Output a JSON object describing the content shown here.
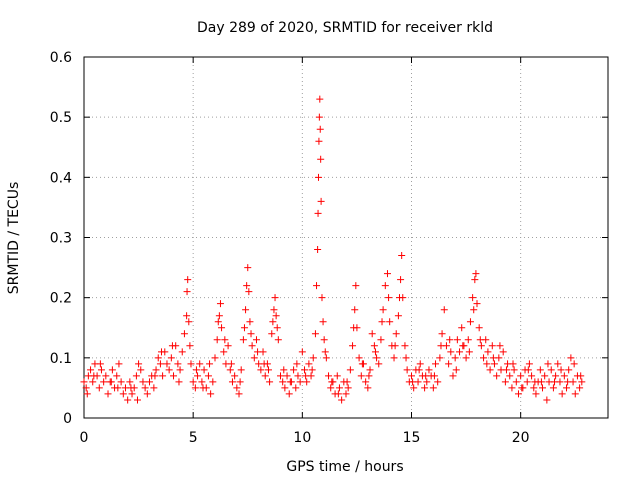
{
  "chart_data": {
    "type": "scatter",
    "title": "Day 289 of 2020, SRMTID for receiver rkld",
    "xlabel": "GPS time / hours",
    "ylabel": "SRMTID / TECUs",
    "xlim": [
      0,
      24
    ],
    "ylim": [
      0,
      0.6
    ],
    "xticks": [
      0,
      5,
      10,
      15,
      20
    ],
    "yticks": [
      0,
      0.1,
      0.2,
      0.3,
      0.4,
      0.5,
      0.6
    ],
    "xtick_labels": [
      "0",
      "5",
      "10",
      "15",
      "20"
    ],
    "ytick_labels": [
      "0",
      "0.1",
      "0.2",
      "0.3",
      "0.4",
      "0.5",
      "0.6"
    ],
    "grid": true,
    "marker": "+",
    "color": "#ff0000",
    "series": [
      {
        "name": "SRMTID",
        "points": [
          [
            0.0,
            0.06
          ],
          [
            0.1,
            0.05
          ],
          [
            0.2,
            0.07
          ],
          [
            0.3,
            0.08
          ],
          [
            0.4,
            0.06
          ],
          [
            0.5,
            0.09
          ],
          [
            0.6,
            0.07
          ],
          [
            0.7,
            0.05
          ],
          [
            0.8,
            0.08
          ],
          [
            0.9,
            0.06
          ],
          [
            1.0,
            0.07
          ],
          [
            1.1,
            0.04
          ],
          [
            1.2,
            0.06
          ],
          [
            1.3,
            0.08
          ],
          [
            1.4,
            0.05
          ],
          [
            1.5,
            0.07
          ],
          [
            1.6,
            0.09
          ],
          [
            1.7,
            0.06
          ],
          [
            1.8,
            0.04
          ],
          [
            1.9,
            0.05
          ],
          [
            2.0,
            0.03
          ],
          [
            2.1,
            0.06
          ],
          [
            2.2,
            0.04
          ],
          [
            2.3,
            0.05
          ],
          [
            2.4,
            0.07
          ],
          [
            2.5,
            0.09
          ],
          [
            2.6,
            0.08
          ],
          [
            2.7,
            0.06
          ],
          [
            2.8,
            0.05
          ],
          [
            2.9,
            0.04
          ],
          [
            3.0,
            0.06
          ],
          [
            3.1,
            0.07
          ],
          [
            3.2,
            0.05
          ],
          [
            3.3,
            0.08
          ],
          [
            3.4,
            0.1
          ],
          [
            3.5,
            0.09
          ],
          [
            3.6,
            0.07
          ],
          [
            3.7,
            0.11
          ],
          [
            3.8,
            0.09
          ],
          [
            3.9,
            0.08
          ],
          [
            4.0,
            0.1
          ],
          [
            4.1,
            0.07
          ],
          [
            4.2,
            0.12
          ],
          [
            4.3,
            0.09
          ],
          [
            4.4,
            0.08
          ],
          [
            4.5,
            0.11
          ],
          [
            4.6,
            0.14
          ],
          [
            4.7,
            0.17
          ],
          [
            4.72,
            0.21
          ],
          [
            4.75,
            0.23
          ],
          [
            4.8,
            0.16
          ],
          [
            4.85,
            0.12
          ],
          [
            4.9,
            0.09
          ],
          [
            5.0,
            0.06
          ],
          [
            5.1,
            0.05
          ],
          [
            5.2,
            0.07
          ],
          [
            5.3,
            0.09
          ],
          [
            5.4,
            0.06
          ],
          [
            5.5,
            0.08
          ],
          [
            5.6,
            0.05
          ],
          [
            5.7,
            0.07
          ],
          [
            5.8,
            0.04
          ],
          [
            5.9,
            0.06
          ],
          [
            6.0,
            0.1
          ],
          [
            6.1,
            0.13
          ],
          [
            6.2,
            0.17
          ],
          [
            6.25,
            0.19
          ],
          [
            6.3,
            0.15
          ],
          [
            6.4,
            0.11
          ],
          [
            6.5,
            0.09
          ],
          [
            6.6,
            0.12
          ],
          [
            6.7,
            0.08
          ],
          [
            6.8,
            0.06
          ],
          [
            6.9,
            0.07
          ],
          [
            7.0,
            0.05
          ],
          [
            7.1,
            0.04
          ],
          [
            7.2,
            0.08
          ],
          [
            7.3,
            0.13
          ],
          [
            7.4,
            0.18
          ],
          [
            7.45,
            0.22
          ],
          [
            7.5,
            0.25
          ],
          [
            7.55,
            0.21
          ],
          [
            7.6,
            0.16
          ],
          [
            7.7,
            0.12
          ],
          [
            7.8,
            0.1
          ],
          [
            7.9,
            0.13
          ],
          [
            8.0,
            0.09
          ],
          [
            8.1,
            0.08
          ],
          [
            8.2,
            0.11
          ],
          [
            8.3,
            0.07
          ],
          [
            8.4,
            0.09
          ],
          [
            8.5,
            0.06
          ],
          [
            8.6,
            0.14
          ],
          [
            8.7,
            0.18
          ],
          [
            8.75,
            0.2
          ],
          [
            8.8,
            0.17
          ],
          [
            8.9,
            0.13
          ],
          [
            9.0,
            0.07
          ],
          [
            9.1,
            0.06
          ],
          [
            9.2,
            0.05
          ],
          [
            9.3,
            0.07
          ],
          [
            9.4,
            0.04
          ],
          [
            9.5,
            0.06
          ],
          [
            9.6,
            0.08
          ],
          [
            9.7,
            0.05
          ],
          [
            9.8,
            0.07
          ],
          [
            9.9,
            0.06
          ],
          [
            10.0,
            0.11
          ],
          [
            10.1,
            0.08
          ],
          [
            10.2,
            0.06
          ],
          [
            10.3,
            0.09
          ],
          [
            10.4,
            0.07
          ],
          [
            10.5,
            0.1
          ],
          [
            10.6,
            0.14
          ],
          [
            10.65,
            0.22
          ],
          [
            10.7,
            0.28
          ],
          [
            10.72,
            0.34
          ],
          [
            10.74,
            0.4
          ],
          [
            10.76,
            0.46
          ],
          [
            10.78,
            0.5
          ],
          [
            10.8,
            0.53
          ],
          [
            10.82,
            0.48
          ],
          [
            10.84,
            0.43
          ],
          [
            10.86,
            0.36
          ],
          [
            10.9,
            0.2
          ],
          [
            10.95,
            0.16
          ],
          [
            11.0,
            0.13
          ],
          [
            11.1,
            0.1
          ],
          [
            11.2,
            0.07
          ],
          [
            11.3,
            0.05
          ],
          [
            11.4,
            0.06
          ],
          [
            11.5,
            0.04
          ],
          [
            11.6,
            0.07
          ],
          [
            11.7,
            0.05
          ],
          [
            11.8,
            0.03
          ],
          [
            11.9,
            0.06
          ],
          [
            12.0,
            0.04
          ],
          [
            12.1,
            0.05
          ],
          [
            12.2,
            0.08
          ],
          [
            12.3,
            0.12
          ],
          [
            12.4,
            0.18
          ],
          [
            12.45,
            0.22
          ],
          [
            12.5,
            0.15
          ],
          [
            12.6,
            0.1
          ],
          [
            12.7,
            0.07
          ],
          [
            12.8,
            0.09
          ],
          [
            12.9,
            0.06
          ],
          [
            13.0,
            0.05
          ],
          [
            13.1,
            0.08
          ],
          [
            13.2,
            0.14
          ],
          [
            13.3,
            0.12
          ],
          [
            13.4,
            0.1
          ],
          [
            13.5,
            0.09
          ],
          [
            13.6,
            0.13
          ],
          [
            13.7,
            0.18
          ],
          [
            13.8,
            0.22
          ],
          [
            13.9,
            0.24
          ],
          [
            14.0,
            0.16
          ],
          [
            14.1,
            0.12
          ],
          [
            14.2,
            0.1
          ],
          [
            14.3,
            0.14
          ],
          [
            14.4,
            0.17
          ],
          [
            14.5,
            0.23
          ],
          [
            14.55,
            0.27
          ],
          [
            14.6,
            0.2
          ],
          [
            14.7,
            0.12
          ],
          [
            14.8,
            0.08
          ],
          [
            14.9,
            0.06
          ],
          [
            15.0,
            0.07
          ],
          [
            15.1,
            0.05
          ],
          [
            15.2,
            0.08
          ],
          [
            15.3,
            0.06
          ],
          [
            15.4,
            0.09
          ],
          [
            15.5,
            0.07
          ],
          [
            15.6,
            0.05
          ],
          [
            15.7,
            0.06
          ],
          [
            15.8,
            0.08
          ],
          [
            15.9,
            0.07
          ],
          [
            16.0,
            0.05
          ],
          [
            16.1,
            0.09
          ],
          [
            16.2,
            0.06
          ],
          [
            16.3,
            0.1
          ],
          [
            16.4,
            0.14
          ],
          [
            16.5,
            0.18
          ],
          [
            16.6,
            0.12
          ],
          [
            16.7,
            0.09
          ],
          [
            16.8,
            0.11
          ],
          [
            16.9,
            0.07
          ],
          [
            17.0,
            0.1
          ],
          [
            17.1,
            0.13
          ],
          [
            17.2,
            0.11
          ],
          [
            17.3,
            0.15
          ],
          [
            17.4,
            0.12
          ],
          [
            17.5,
            0.1
          ],
          [
            17.6,
            0.13
          ],
          [
            17.7,
            0.16
          ],
          [
            17.8,
            0.2
          ],
          [
            17.9,
            0.23
          ],
          [
            17.95,
            0.24
          ],
          [
            18.0,
            0.19
          ],
          [
            18.1,
            0.15
          ],
          [
            18.2,
            0.12
          ],
          [
            18.3,
            0.1
          ],
          [
            18.4,
            0.13
          ],
          [
            18.5,
            0.11
          ],
          [
            18.6,
            0.08
          ],
          [
            18.7,
            0.12
          ],
          [
            18.8,
            0.09
          ],
          [
            18.9,
            0.07
          ],
          [
            19.0,
            0.1
          ],
          [
            19.1,
            0.08
          ],
          [
            19.2,
            0.11
          ],
          [
            19.3,
            0.06
          ],
          [
            19.4,
            0.09
          ],
          [
            19.5,
            0.07
          ],
          [
            19.6,
            0.05
          ],
          [
            19.7,
            0.08
          ],
          [
            19.8,
            0.06
          ],
          [
            19.9,
            0.04
          ],
          [
            20.0,
            0.07
          ],
          [
            20.1,
            0.05
          ],
          [
            20.2,
            0.08
          ],
          [
            20.3,
            0.06
          ],
          [
            20.4,
            0.09
          ],
          [
            20.5,
            0.07
          ],
          [
            20.6,
            0.05
          ],
          [
            20.7,
            0.04
          ],
          [
            20.8,
            0.06
          ],
          [
            20.9,
            0.08
          ],
          [
            21.0,
            0.05
          ],
          [
            21.1,
            0.07
          ],
          [
            21.2,
            0.03
          ],
          [
            21.3,
            0.06
          ],
          [
            21.4,
            0.08
          ],
          [
            21.5,
            0.05
          ],
          [
            21.6,
            0.07
          ],
          [
            21.7,
            0.09
          ],
          [
            21.8,
            0.06
          ],
          [
            21.9,
            0.04
          ],
          [
            22.0,
            0.07
          ],
          [
            22.1,
            0.05
          ],
          [
            22.2,
            0.08
          ],
          [
            22.3,
            0.1
          ],
          [
            22.4,
            0.06
          ],
          [
            22.5,
            0.04
          ],
          [
            22.6,
            0.07
          ],
          [
            22.7,
            0.05
          ],
          [
            22.8,
            0.06
          ],
          [
            0.15,
            0.04
          ],
          [
            0.45,
            0.07
          ],
          [
            0.75,
            0.09
          ],
          [
            1.25,
            0.06
          ],
          [
            1.55,
            0.05
          ],
          [
            2.15,
            0.05
          ],
          [
            2.45,
            0.03
          ],
          [
            3.25,
            0.07
          ],
          [
            3.55,
            0.11
          ],
          [
            4.05,
            0.12
          ],
          [
            4.35,
            0.06
          ],
          [
            5.15,
            0.08
          ],
          [
            5.45,
            0.05
          ],
          [
            5.75,
            0.09
          ],
          [
            6.15,
            0.16
          ],
          [
            6.45,
            0.13
          ],
          [
            6.75,
            0.09
          ],
          [
            7.15,
            0.06
          ],
          [
            7.35,
            0.15
          ],
          [
            7.65,
            0.14
          ],
          [
            7.95,
            0.11
          ],
          [
            8.25,
            0.09
          ],
          [
            8.45,
            0.08
          ],
          [
            8.65,
            0.16
          ],
          [
            8.85,
            0.15
          ],
          [
            9.15,
            0.08
          ],
          [
            9.45,
            0.06
          ],
          [
            9.75,
            0.09
          ],
          [
            10.15,
            0.07
          ],
          [
            10.45,
            0.08
          ],
          [
            11.05,
            0.11
          ],
          [
            11.35,
            0.06
          ],
          [
            11.65,
            0.04
          ],
          [
            12.05,
            0.06
          ],
          [
            12.35,
            0.15
          ],
          [
            12.75,
            0.09
          ],
          [
            13.05,
            0.07
          ],
          [
            13.35,
            0.11
          ],
          [
            13.65,
            0.16
          ],
          [
            13.95,
            0.2
          ],
          [
            14.25,
            0.12
          ],
          [
            14.45,
            0.2
          ],
          [
            14.75,
            0.1
          ],
          [
            15.05,
            0.06
          ],
          [
            15.35,
            0.08
          ],
          [
            15.65,
            0.07
          ],
          [
            16.05,
            0.07
          ],
          [
            16.35,
            0.12
          ],
          [
            16.75,
            0.13
          ],
          [
            17.05,
            0.08
          ],
          [
            17.35,
            0.12
          ],
          [
            17.65,
            0.11
          ],
          [
            17.85,
            0.18
          ],
          [
            18.15,
            0.13
          ],
          [
            18.45,
            0.09
          ],
          [
            18.75,
            0.1
          ],
          [
            19.05,
            0.12
          ],
          [
            19.35,
            0.08
          ],
          [
            19.65,
            0.09
          ],
          [
            20.05,
            0.05
          ],
          [
            20.35,
            0.08
          ],
          [
            20.65,
            0.06
          ],
          [
            20.95,
            0.06
          ],
          [
            21.25,
            0.09
          ],
          [
            21.55,
            0.06
          ],
          [
            21.85,
            0.08
          ],
          [
            22.15,
            0.06
          ],
          [
            22.45,
            0.09
          ],
          [
            22.75,
            0.07
          ]
        ]
      }
    ]
  }
}
